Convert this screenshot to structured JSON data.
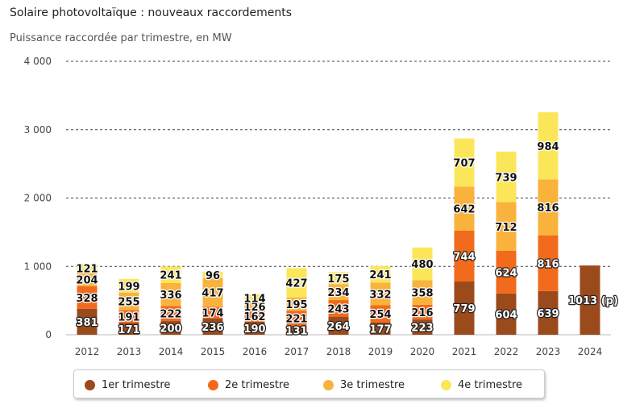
{
  "header": {
    "title": "Solaire photovoltaïque : nouveaux raccordements",
    "subtitle": "Puissance raccordée par trimestre, en MW"
  },
  "colors": {
    "q1": "#9b4a1c",
    "q2": "#f26a1b",
    "q3": "#f9b33d",
    "q4": "#fbe65a",
    "grid": "#444444",
    "axis_text": "#444444"
  },
  "legend": {
    "items": [
      {
        "label": "1er trimestre",
        "color": "#9b4a1c"
      },
      {
        "label": "2e trimestre",
        "color": "#f26a1b"
      },
      {
        "label": "3e trimestre",
        "color": "#f9b33d"
      },
      {
        "label": "4e trimestre",
        "color": "#fbe65a"
      }
    ]
  },
  "chart_data": {
    "type": "bar",
    "stacked": true,
    "title": "Solaire photovoltaïque : nouveaux raccordements",
    "subtitle": "Puissance raccordée par trimestre, en MW",
    "categories": [
      "2012",
      "2013",
      "2014",
      "2015",
      "2016",
      "2017",
      "2018",
      "2019",
      "2020",
      "2021",
      "2022",
      "2023",
      "2024"
    ],
    "series": [
      {
        "name": "1er trimestre",
        "values": [
          381,
          171,
          200,
          236,
          190,
          131,
          264,
          177,
          223,
          779,
          604,
          639,
          1013
        ]
      },
      {
        "name": "2e trimestre",
        "values": [
          328,
          191,
          222,
          174,
          162,
          221,
          243,
          254,
          216,
          744,
          624,
          816,
          null
        ]
      },
      {
        "name": "3e trimestre",
        "values": [
          204,
          255,
          336,
          417,
          126,
          195,
          234,
          332,
          358,
          642,
          712,
          816,
          null
        ]
      },
      {
        "name": "4e trimestre",
        "values": [
          121,
          199,
          241,
          96,
          114,
          427,
          175,
          241,
          480,
          707,
          739,
          984,
          null
        ]
      }
    ],
    "data_labels": [
      [
        "381",
        "171",
        "200",
        "236",
        "190",
        "131",
        "264",
        "177",
        "223",
        "779",
        "604",
        "639",
        "1013 (p)"
      ],
      [
        "328",
        "191",
        "222",
        "174",
        "162",
        "221",
        "243",
        "254",
        "216",
        "744",
        "624",
        "816",
        ""
      ],
      [
        "204",
        "255",
        "336",
        "417",
        "126",
        "195",
        "234",
        "332",
        "358",
        "642",
        "712",
        "816",
        ""
      ],
      [
        "121",
        "199",
        "241",
        "96",
        "114",
        "427",
        "175",
        "241",
        "480",
        "707",
        "739",
        "984",
        ""
      ]
    ],
    "y_ticks": [
      0,
      1000,
      2000,
      3000,
      4000
    ],
    "y_tick_labels": [
      "0",
      "1 000",
      "2 000",
      "3 000",
      "4 000"
    ],
    "ylim": [
      0,
      4000
    ],
    "grid": true,
    "legend_position": "bottom"
  }
}
